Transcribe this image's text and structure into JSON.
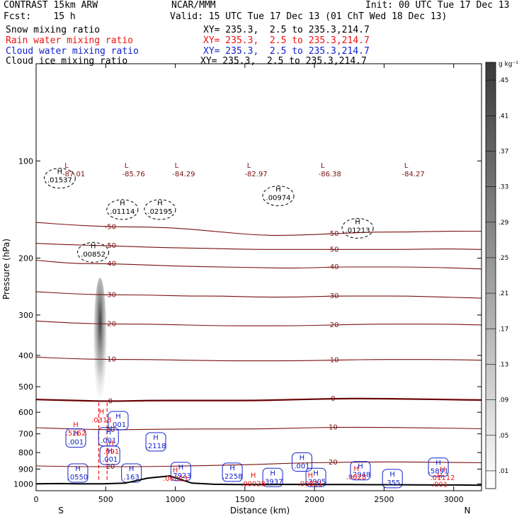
{
  "header": {
    "model": "CONTRAST 15km ARW",
    "org": "NCAR/MMM",
    "init": "Init: 00 UTC Tue 17 Dec 13",
    "fcst": "Fcst:    15 h",
    "valid": "Valid: 15 UTC Tue 17 Dec 13 (01 ChT Wed 18 Dec 13)",
    "rows": [
      {
        "field": "Snow mixing ratio",
        "xy": "XY= 235.3,  2.5 to 235.3,214.7",
        "color": "#000000"
      },
      {
        "field": "Rain water mixing ratio",
        "xy": "XY= 235.3,  2.5 to 235.3,214.7",
        "color": "#ee1111"
      },
      {
        "field": "Cloud water mixing ratio",
        "xy": "XY= 235.3,  2.5 to 235.3,214.7",
        "color": "#1122cc"
      },
      {
        "field": "Cloud ice mixing ratio",
        "xy": "XY= 235.3,  2.5 to 235.3,214.7",
        "color": "#000000"
      }
    ]
  },
  "chart_data": {
    "type": "contour-cross-section",
    "xlabel": "Distance (km)",
    "ylabel": "Pressure (hPa)",
    "xlim": [
      0,
      3200
    ],
    "ylim": [
      1050,
      50
    ],
    "y_scale": "log",
    "x_ticks": [
      0,
      500,
      1000,
      1500,
      2000,
      2500,
      3000
    ],
    "y_ticks": [
      100,
      200,
      300,
      400,
      500,
      600,
      700,
      800,
      900,
      1000
    ],
    "endpoints": {
      "left": "S",
      "right": "N"
    },
    "colorbar": {
      "unit": "g kg⁻¹",
      "levels": [
        ".01",
        ".05",
        ".09",
        ".13",
        ".17",
        ".21",
        ".25",
        ".29",
        ".33",
        ".37",
        ".41",
        ".45"
      ]
    },
    "colors": {
      "temperature": "#7a1010",
      "freezing": "#6b0000",
      "rain": "#ee1111",
      "cloud_water": "#1122cc",
      "ice": "#000000",
      "terrain": "#000000"
    },
    "temperature_contours": [
      {
        "label": "-50",
        "p": [
          155,
          158,
          160,
          160,
          162,
          166,
          170,
          170,
          168,
          166,
          166,
          165,
          165
        ]
      },
      {
        "label": "-50",
        "p": [
          180,
          182,
          183,
          185,
          186,
          187,
          188,
          188,
          188,
          188,
          188,
          187,
          188
        ]
      },
      {
        "label": "-40",
        "p": [
          203,
          208,
          208,
          210,
          212,
          213,
          214,
          215,
          213,
          213,
          213,
          214,
          216
        ]
      },
      {
        "label": "-30",
        "p": [
          254,
          258,
          260,
          260,
          262,
          262,
          264,
          264,
          262,
          262,
          262,
          264,
          266
        ]
      },
      {
        "label": "-20",
        "p": [
          313,
          318,
          320,
          320,
          322,
          324,
          324,
          324,
          322,
          320,
          320,
          320,
          322
        ]
      },
      {
        "label": "-10",
        "p": [
          405,
          410,
          412,
          412,
          414,
          416,
          416,
          416,
          414,
          412,
          412,
          412,
          414
        ]
      },
      {
        "label": "0",
        "p": [
          548,
          552,
          555,
          552,
          552,
          552,
          552,
          548,
          545,
          544,
          546,
          548,
          550
        ]
      },
      {
        "label": "10",
        "p": [
          670,
          676,
          680,
          678,
          676,
          676,
          676,
          672,
          668,
          668,
          670,
          672,
          675
        ]
      },
      {
        "label": "20",
        "p": [
          880,
          884,
          885,
          884,
          880,
          876,
          870,
          862,
          858,
          855,
          855,
          858,
          860
        ]
      }
    ],
    "ice_maxima": [
      {
        "label": ".01537",
        "x": 170,
        "p": 112
      },
      {
        "label": ".01114",
        "x": 620,
        "p": 140
      },
      {
        "label": ".02195",
        "x": 890,
        "p": 140
      },
      {
        "label": ".00974",
        "x": 1740,
        "p": 127
      },
      {
        "label": ".01213",
        "x": 2310,
        "p": 160
      },
      {
        "label": ".00852",
        "x": 410,
        "p": 190
      }
    ],
    "temperature_minima": [
      {
        "label": "-87.01",
        "x": 270,
        "p": 103
      },
      {
        "label": "-85.76",
        "x": 700,
        "p": 103
      },
      {
        "label": "-84.29",
        "x": 1060,
        "p": 103
      },
      {
        "label": "-82.97",
        "x": 1580,
        "p": 103
      },
      {
        "label": "-86.38",
        "x": 2110,
        "p": 103
      },
      {
        "label": "-84.27",
        "x": 2710,
        "p": 103
      }
    ],
    "rain_maxima": [
      {
        "label": ".0313",
        "x": 470,
        "p": 620
      },
      {
        "label": ".5262",
        "x": 285,
        "p": 680
      },
      {
        "label": ".091",
        "x": 540,
        "p": 775
      },
      {
        "label": ".00023",
        "x": 1000,
        "p": 940
      },
      {
        "label": ".00028",
        "x": 1560,
        "p": 975
      },
      {
        "label": ".00021",
        "x": 1970,
        "p": 975
      },
      {
        "label": ".0028",
        "x": 2300,
        "p": 930
      },
      {
        "label": ".01112",
        "x": 2920,
        "p": 935
      },
      {
        "label": ".001",
        "x": 2900,
        "p": 980
      }
    ],
    "cloud_water_maxima": [
      {
        "label": ".001",
        "x": 590,
        "p": 640
      },
      {
        "label": ".001",
        "x": 285,
        "p": 725
      },
      {
        "label": ".001",
        "x": 520,
        "p": 718
      },
      {
        "label": ".2118",
        "x": 860,
        "p": 745
      },
      {
        "label": ".001",
        "x": 530,
        "p": 820
      },
      {
        "label": ".0550",
        "x": 300,
        "p": 930
      },
      {
        "label": ".163",
        "x": 685,
        "p": 930
      },
      {
        "label": ".7923",
        "x": 1040,
        "p": 920
      },
      {
        "label": ".2258",
        "x": 1410,
        "p": 925
      },
      {
        "label": ".3937",
        "x": 1700,
        "p": 960
      },
      {
        "label": ".3905",
        "x": 2010,
        "p": 960
      },
      {
        "label": ".2948",
        "x": 2330,
        "p": 915
      },
      {
        "label": ".355",
        "x": 2560,
        "p": 968
      },
      {
        "label": ".5891",
        "x": 2890,
        "p": 892
      },
      {
        "label": ".001",
        "x": 1910,
        "p": 860
      }
    ],
    "snow_shading": {
      "x": 470,
      "p_top": 230,
      "p_bottom": 565,
      "max_value": ".45"
    },
    "terrain_pressure": [
      1000,
      998,
      1000,
      1000,
      995,
      960,
      945,
      995,
      1003,
      1005,
      1005,
      1004,
      1004,
      1005,
      1005,
      1006,
      1006,
      1007,
      1008,
      1008,
      1010
    ]
  }
}
